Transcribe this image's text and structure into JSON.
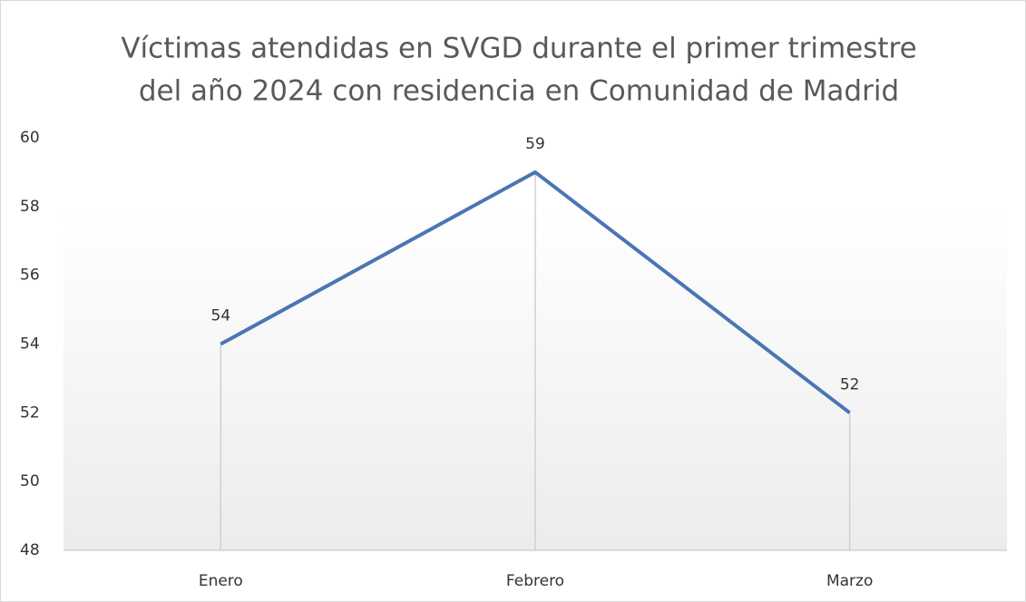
{
  "chart_data": {
    "type": "line",
    "title": [
      "Víctimas atendidas en SVGD durante el primer trimestre",
      "del año 2024 con residencia en Comunidad de Madrid"
    ],
    "categories": [
      "Enero",
      "Febrero",
      "Marzo"
    ],
    "values": [
      54,
      59,
      52
    ],
    "color": "#4a76b3",
    "ylim": [
      48,
      60
    ],
    "yticks": [
      48,
      50,
      52,
      54,
      56,
      58,
      60
    ],
    "grid": false,
    "drop_lines": true
  }
}
